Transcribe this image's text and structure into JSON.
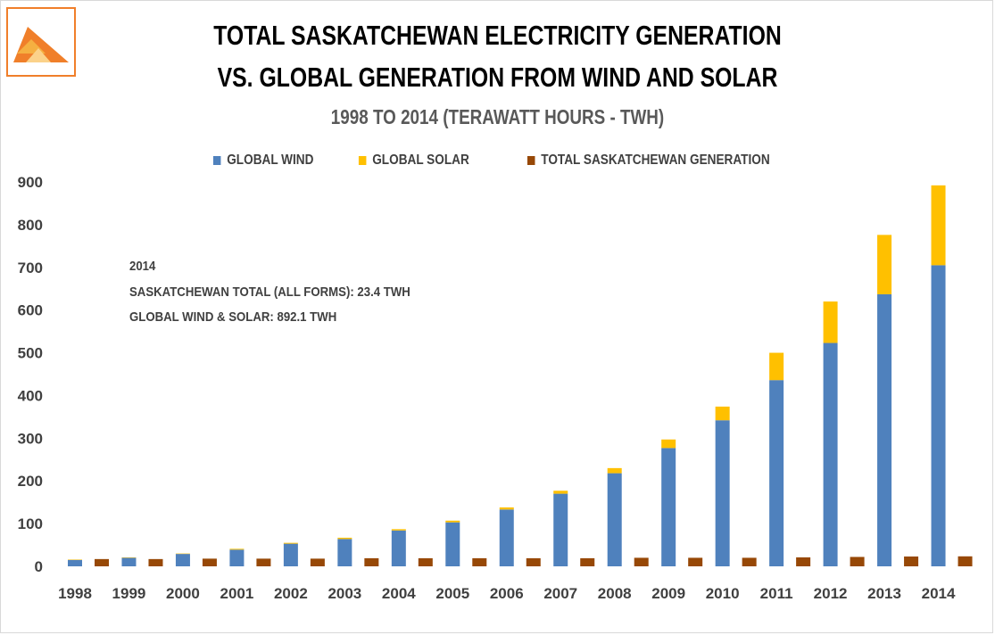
{
  "header": {
    "title_line1": "TOTAL SASKATCHEWAN ELECTRICITY GENERATION",
    "title_line2": "VS. GLOBAL GENERATION FROM WIND AND SOLAR",
    "subtitle": "1998 TO 2014 (TERAWATT HOURS - TWH)"
  },
  "logo": {
    "icon": "triangle-logo-icon",
    "colors": [
      "#f07f2a",
      "#f5b041"
    ]
  },
  "annotation": {
    "line1": "2014",
    "line2": "SASKATCHEWAN TOTAL (ALL FORMS): 23.4 TWH",
    "line3": "GLOBAL WIND & SOLAR: 892.1 TWH"
  },
  "colors": {
    "wind": "#4f81bd",
    "solar": "#ffc000",
    "sask": "#974806"
  },
  "chart_data": {
    "type": "bar",
    "stacked_group": [
      "Global Wind",
      "Global Solar"
    ],
    "categories": [
      "1998",
      "1999",
      "2000",
      "2001",
      "2002",
      "2003",
      "2004",
      "2005",
      "2006",
      "2007",
      "2008",
      "2009",
      "2010",
      "2011",
      "2012",
      "2013",
      "2014"
    ],
    "series": [
      {
        "name": "GLOBAL WIND",
        "values": [
          15,
          20,
          29,
          39,
          53,
          64,
          84,
          103,
          133,
          170,
          218,
          277,
          342,
          436,
          523,
          637,
          705
        ]
      },
      {
        "name": "GLOBAL SOLAR",
        "values": [
          1,
          1,
          1,
          2,
          2,
          3,
          3,
          4,
          5,
          7,
          12,
          20,
          32,
          64,
          97,
          139,
          187
        ]
      },
      {
        "name": "TOTAL SASKATCHEWAN GENERATION",
        "values": [
          17,
          17,
          18,
          18,
          18,
          19,
          19,
          19,
          19,
          19,
          20,
          20,
          20,
          21,
          22,
          23,
          23.4
        ]
      }
    ],
    "title": "TOTAL SASKATCHEWAN ELECTRICITY GENERATION VS. GLOBAL GENERATION FROM WIND AND SOLAR",
    "subtitle": "1998 TO 2014 (TERAWATT HOURS - TWH)",
    "xlabel": "",
    "ylabel": "",
    "ylim": [
      0,
      900
    ],
    "yticks": [
      "0",
      "100",
      "200",
      "300",
      "400",
      "500",
      "600",
      "700",
      "800",
      "900"
    ],
    "grid": false,
    "legend_position": "top"
  }
}
